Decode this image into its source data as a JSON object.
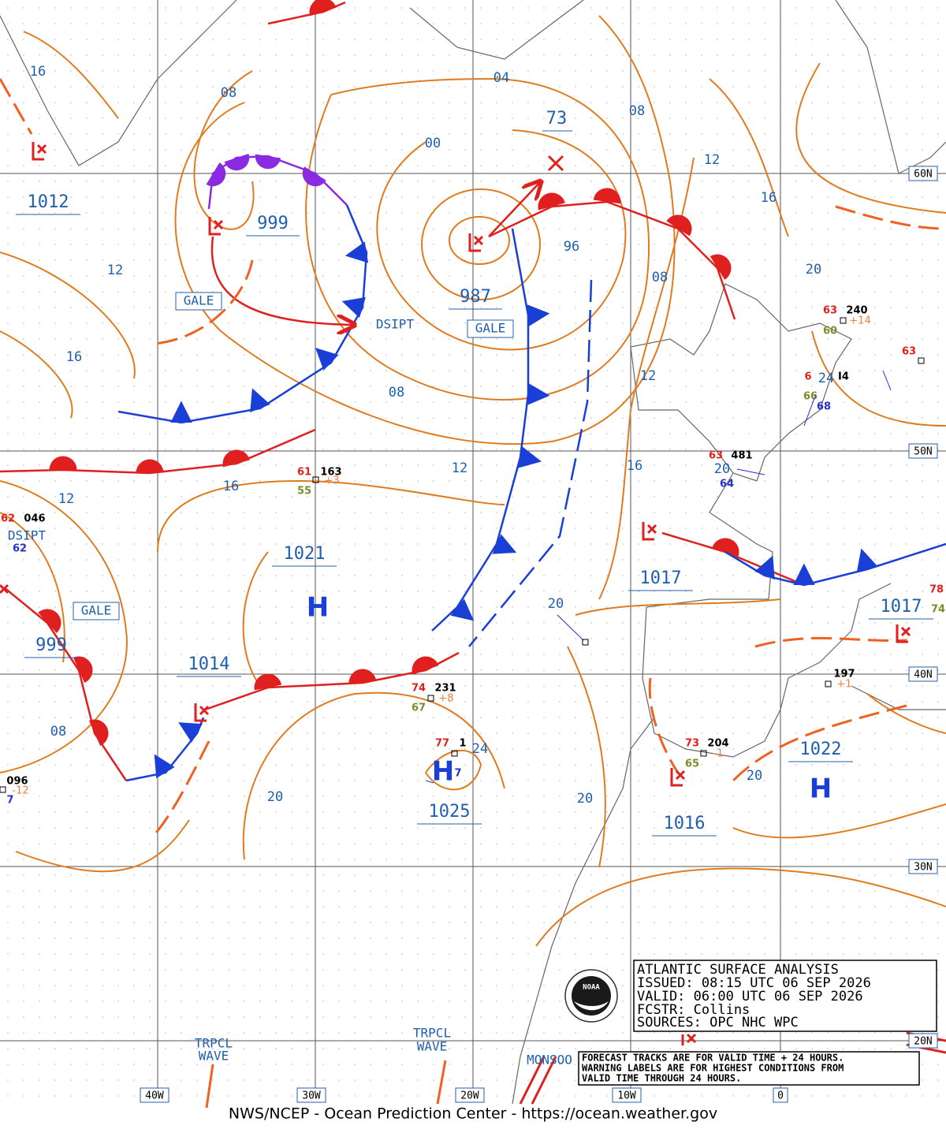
{
  "grid_labels": {
    "latitudes": [
      "60N",
      "50N",
      "40N",
      "30N",
      "20N"
    ],
    "longitudes": [
      "40W",
      "30W",
      "20W",
      "10W",
      "0"
    ]
  },
  "isobar_labels": [
    "16",
    "08",
    "04",
    "00",
    "08",
    "12",
    "16",
    "12",
    "96",
    "08",
    "20",
    "16",
    "08",
    "12",
    "12",
    "16",
    "16",
    "12",
    "20",
    "20",
    "08",
    "20",
    "20",
    "20",
    "24",
    "24"
  ],
  "pressure_centers": [
    "73",
    "1012",
    "999",
    "987",
    "1021",
    "1017",
    "1017",
    "999",
    "1014",
    "1025",
    "1022",
    "1016"
  ],
  "highs": [
    "H",
    "H",
    "H"
  ],
  "warnings": [
    "GALE",
    "GALE",
    "GALE"
  ],
  "dissipating": [
    "DSIPT",
    "DSIPT"
  ],
  "stations": [
    [
      "61",
      "163",
      "55",
      "+3"
    ],
    [
      "74",
      "231",
      "67",
      "+8"
    ],
    [
      "77",
      "1",
      "7"
    ],
    [
      "63",
      "240",
      "60",
      "+14"
    ],
    [
      "63"
    ],
    [
      "63",
      "481",
      "64"
    ],
    [
      "6",
      "I4",
      "66",
      "68"
    ],
    [
      "197",
      "+1"
    ],
    [
      "73",
      "204",
      "65",
      "-1"
    ],
    [
      "62",
      "046",
      "62"
    ],
    [
      "096",
      "-12",
      "7"
    ],
    [
      "78",
      "74"
    ]
  ],
  "feature_labels": {
    "tropical_waves": [
      [
        "TRPCL",
        "WAVE"
      ],
      [
        "TRPCL",
        "WAVE"
      ]
    ],
    "monsoon": "MONSOO"
  },
  "info_box": [
    "ATLANTIC SURFACE ANALYSIS",
    "ISSUED:  08:15 UTC 06 SEP 2026",
    "VALID:   06:00 UTC 06 SEP 2026",
    "FCSTR:   Collins",
    "SOURCES: OPC NHC WPC"
  ],
  "note": [
    "FORECAST TRACKS ARE FOR VALID TIME + 24 HOURS.",
    "WARNING LABELS ARE FOR HIGHEST CONDITIONS FROM",
    "VALID TIME THROUGH 24 HOURS."
  ],
  "logo": "NOAA",
  "footer": "NWS/NCEP - Ocean Prediction Center - https://ocean.weather.gov"
}
